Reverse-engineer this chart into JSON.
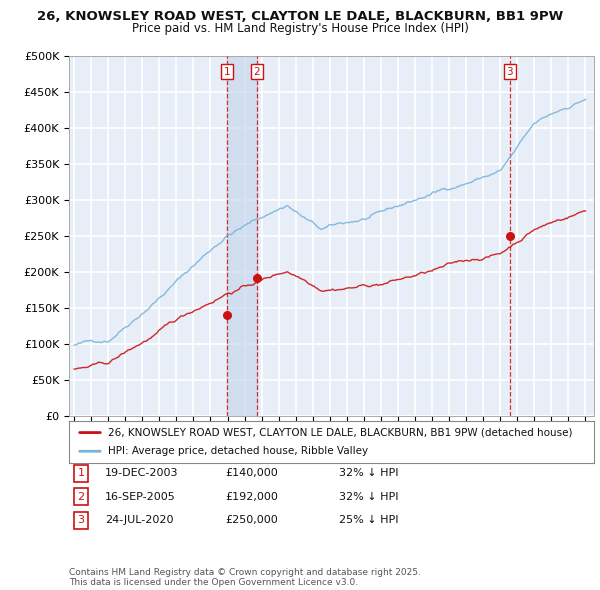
{
  "title_line1": "26, KNOWSLEY ROAD WEST, CLAYTON LE DALE, BLACKBURN, BB1 9PW",
  "title_line2": "Price paid vs. HM Land Registry's House Price Index (HPI)",
  "ylim": [
    0,
    500000
  ],
  "yticks": [
    0,
    50000,
    100000,
    150000,
    200000,
    250000,
    300000,
    350000,
    400000,
    450000,
    500000
  ],
  "ytick_labels": [
    "£0",
    "£50K",
    "£100K",
    "£150K",
    "£200K",
    "£250K",
    "£300K",
    "£350K",
    "£400K",
    "£450K",
    "£500K"
  ],
  "xlim_start": 1994.7,
  "xlim_end": 2025.5,
  "hpi_color": "#7ab4d8",
  "price_color": "#cc1111",
  "vline_color": "#cc1111",
  "background_color": "#e8eef8",
  "grid_color": "#ffffff",
  "shade_color": "#c8d8ee",
  "transactions": [
    {
      "num": 1,
      "date_num": 2003.96,
      "price": 140000,
      "label": "1"
    },
    {
      "num": 2,
      "date_num": 2005.71,
      "price": 192000,
      "label": "2"
    },
    {
      "num": 3,
      "date_num": 2020.55,
      "price": 250000,
      "label": "3"
    }
  ],
  "legend_entries": [
    "26, KNOWSLEY ROAD WEST, CLAYTON LE DALE, BLACKBURN, BB1 9PW (detached house)",
    "HPI: Average price, detached house, Ribble Valley"
  ],
  "table_rows": [
    {
      "num": "1",
      "date": "19-DEC-2003",
      "price": "£140,000",
      "hpi": "32% ↓ HPI"
    },
    {
      "num": "2",
      "date": "16-SEP-2005",
      "price": "£192,000",
      "hpi": "32% ↓ HPI"
    },
    {
      "num": "3",
      "date": "24-JUL-2020",
      "price": "£250,000",
      "hpi": "25% ↓ HPI"
    }
  ],
  "footnote": "Contains HM Land Registry data © Crown copyright and database right 2025.\nThis data is licensed under the Open Government Licence v3.0."
}
